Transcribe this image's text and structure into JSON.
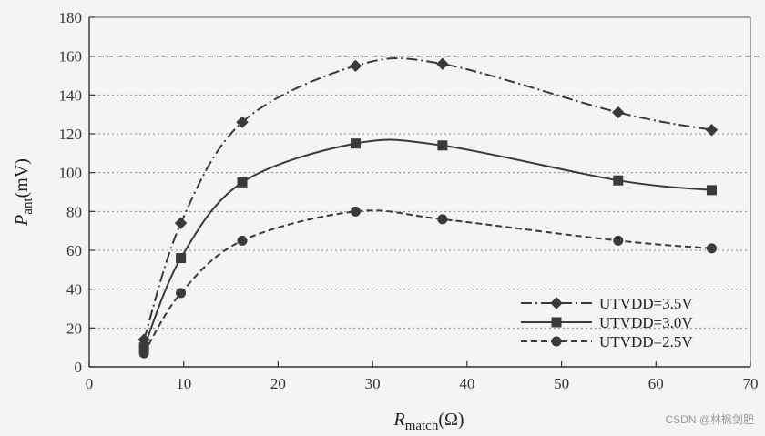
{
  "chart_data": {
    "type": "line",
    "title": "",
    "xlabel_main": "R",
    "xlabel_sub": "match",
    "xlabel_unit": "(Ω)",
    "ylabel_main": "P",
    "ylabel_sub": "ant",
    "ylabel_unit": "(mV)",
    "xlim": [
      0,
      70
    ],
    "ylim": [
      0,
      180
    ],
    "xticks": [
      0,
      10,
      20,
      30,
      40,
      50,
      60,
      70
    ],
    "yticks": [
      0,
      20,
      40,
      60,
      80,
      100,
      120,
      140,
      160,
      180
    ],
    "grid": "horizontal-dotted",
    "reference_line": {
      "y": 160,
      "style": "dashed"
    },
    "legend_position": "bottom-right",
    "series": [
      {
        "name": "UTVDD=3.5V",
        "line_style": "dash-dot",
        "marker": "diamond",
        "x": [
          5.8,
          9.7,
          16.2,
          28.2,
          37.4,
          56.0,
          65.9
        ],
        "y": [
          14,
          74,
          126,
          155,
          156,
          131,
          122
        ]
      },
      {
        "name": "UTVDD=3.0V",
        "line_style": "solid",
        "marker": "square",
        "x": [
          5.8,
          9.7,
          16.2,
          28.2,
          37.4,
          56.0,
          65.9
        ],
        "y": [
          10,
          56,
          95,
          115,
          114,
          96,
          91
        ]
      },
      {
        "name": "UTVDD=2.5V",
        "line_style": "dashed",
        "marker": "circle",
        "x": [
          5.8,
          9.7,
          16.2,
          28.2,
          37.4,
          56.0,
          65.9
        ],
        "y": [
          7,
          38,
          65,
          80,
          76,
          65,
          61
        ]
      }
    ],
    "colors": {
      "line": "#3a3a3a",
      "grid": "#888888"
    }
  },
  "watermark": "CSDN @林枫剑胆"
}
